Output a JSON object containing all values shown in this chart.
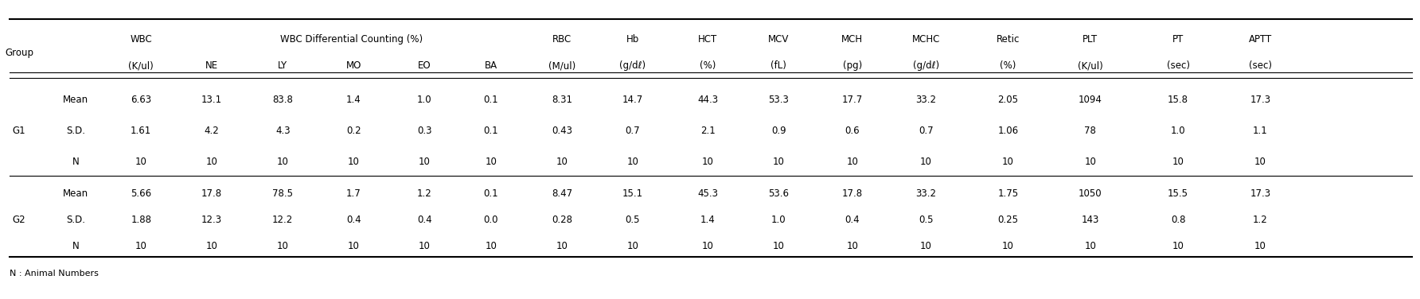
{
  "header_row1": [
    "Group",
    "",
    "WBC",
    "",
    "WBC Differential Counting (%)",
    "",
    "",
    "",
    "RBC",
    "Hb",
    "HCT",
    "MCV",
    "MCH",
    "MCHC",
    "Retic",
    "PLT",
    "PT",
    "APTT"
  ],
  "header_row2": [
    "",
    "",
    "(K/ul)",
    "NE",
    "LY",
    "MO",
    "EO",
    "BA",
    "(M/ul)",
    "(g/dℓ)",
    "(%)",
    "(fL)",
    "(pg)",
    "(g/dℓ)",
    "(%)",
    "(K/ul)",
    "(sec)",
    "(sec)"
  ],
  "col_headers_line1": [
    "WBC",
    "WBC Differential Counting (%)",
    "RBC",
    "Hb",
    "HCT",
    "MCV",
    "MCH",
    "MCHC",
    "Retic",
    "PLT",
    "PT",
    "APTT"
  ],
  "groups": [
    "G1",
    "G2"
  ],
  "row_labels": [
    "Mean",
    "S.D.",
    "N"
  ],
  "data": {
    "G1": {
      "Mean": [
        "6.63",
        "13.1",
        "83.8",
        "1.4",
        "1.0",
        "0.1",
        "8.31",
        "14.7",
        "44.3",
        "53.3",
        "17.7",
        "33.2",
        "2.05",
        "1094",
        "15.8",
        "17.3"
      ],
      "S.D.": [
        "1.61",
        "4.2",
        "4.3",
        "0.2",
        "0.3",
        "0.1",
        "0.43",
        "0.7",
        "2.1",
        "0.9",
        "0.6",
        "0.7",
        "1.06",
        "78",
        "1.0",
        "1.1"
      ],
      "N": [
        "10",
        "10",
        "10",
        "10",
        "10",
        "10",
        "10",
        "10",
        "10",
        "10",
        "10",
        "10",
        "10",
        "10",
        "10",
        "10"
      ]
    },
    "G2": {
      "Mean": [
        "5.66",
        "17.8",
        "78.5",
        "1.7",
        "1.2",
        "0.1",
        "8.47",
        "15.1",
        "45.3",
        "53.6",
        "17.8",
        "33.2",
        "1.75",
        "1050",
        "15.5",
        "17.3"
      ],
      "S.D.": [
        "1.88",
        "12.3",
        "12.2",
        "0.4",
        "0.4",
        "0.0",
        "0.28",
        "0.5",
        "1.4",
        "1.0",
        "0.4",
        "0.5",
        "0.25",
        "143",
        "0.8",
        "1.2"
      ],
      "N": [
        "10",
        "10",
        "10",
        "10",
        "10",
        "10",
        "10",
        "10",
        "10",
        "10",
        "10",
        "10",
        "10",
        "10",
        "10",
        "10"
      ]
    }
  },
  "footnote": "N : Animal Numbers",
  "background_color": "#ffffff",
  "text_color": "#000000",
  "font_size": 8.5
}
